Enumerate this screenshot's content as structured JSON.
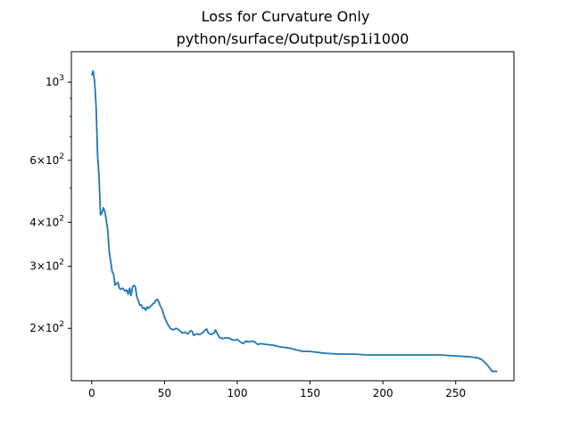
{
  "chart_data": {
    "type": "line",
    "title": "Loss for Curvature Only",
    "subtitle": "python/surface/Output/sp1i1000",
    "xlabel": "",
    "ylabel": "",
    "yscale": "log",
    "xlim": [
      -14,
      290
    ],
    "ylim": [
      142,
      1220
    ],
    "grid": false,
    "x_ticks": [
      0,
      50,
      100,
      150,
      200,
      250
    ],
    "y_ticks": [
      {
        "value": 1000,
        "base": "10",
        "exp": "3"
      },
      {
        "value": 600,
        "base": "6×10",
        "exp": "2"
      },
      {
        "value": 400,
        "base": "4×10",
        "exp": "2"
      },
      {
        "value": 300,
        "base": "3×10",
        "exp": "2"
      },
      {
        "value": 200,
        "base": "2×10",
        "exp": "2"
      }
    ],
    "y_minor_ticks": [
      500,
      700,
      800,
      900
    ],
    "series": [
      {
        "color": "#1f77b4",
        "x": [
          0,
          1,
          2,
          3,
          4,
          5,
          6,
          7,
          8,
          9,
          10,
          11,
          12,
          13,
          14,
          15,
          16,
          17,
          18,
          19,
          20,
          21,
          22,
          23,
          24,
          25,
          26,
          27,
          28,
          29,
          30,
          31,
          32,
          33,
          34,
          35,
          36,
          37,
          38,
          39,
          40,
          41,
          42,
          43,
          44,
          45,
          46,
          47,
          48,
          49,
          50,
          52,
          54,
          56,
          58,
          60,
          62,
          64,
          66,
          68,
          69,
          70,
          72,
          74,
          76,
          78,
          79,
          80,
          82,
          84,
          85,
          86,
          88,
          90,
          92,
          94,
          96,
          98,
          100,
          102,
          104,
          106,
          108,
          110,
          112,
          114,
          116,
          120,
          125,
          130,
          135,
          140,
          145,
          150,
          155,
          160,
          170,
          180,
          190,
          200,
          210,
          220,
          230,
          240,
          250,
          260,
          265,
          268,
          270,
          272,
          274,
          275,
          276,
          278
        ],
        "y": [
          1050,
          1075,
          1000,
          850,
          620,
          540,
          420,
          425,
          440,
          430,
          405,
          380,
          330,
          310,
          290,
          285,
          265,
          268,
          270,
          260,
          258,
          260,
          258,
          255,
          257,
          250,
          260,
          248,
          262,
          265,
          262,
          245,
          240,
          233,
          233,
          228,
          229,
          225,
          230,
          228,
          230,
          232,
          235,
          236,
          240,
          242,
          238,
          232,
          228,
          222,
          215,
          206,
          200,
          198,
          200,
          198,
          194,
          195,
          193,
          197,
          196,
          191,
          193,
          192,
          194,
          198,
          199,
          194,
          192,
          194,
          198,
          194,
          188,
          187,
          188,
          188,
          186,
          185,
          186,
          183,
          181,
          184,
          183,
          184,
          183,
          180,
          181,
          180,
          179,
          177,
          176,
          174,
          172,
          172,
          171,
          170,
          169,
          169,
          168,
          168,
          168,
          168,
          168,
          168,
          167,
          166,
          165,
          163,
          160,
          157,
          153,
          151,
          151,
          151
        ]
      }
    ]
  }
}
